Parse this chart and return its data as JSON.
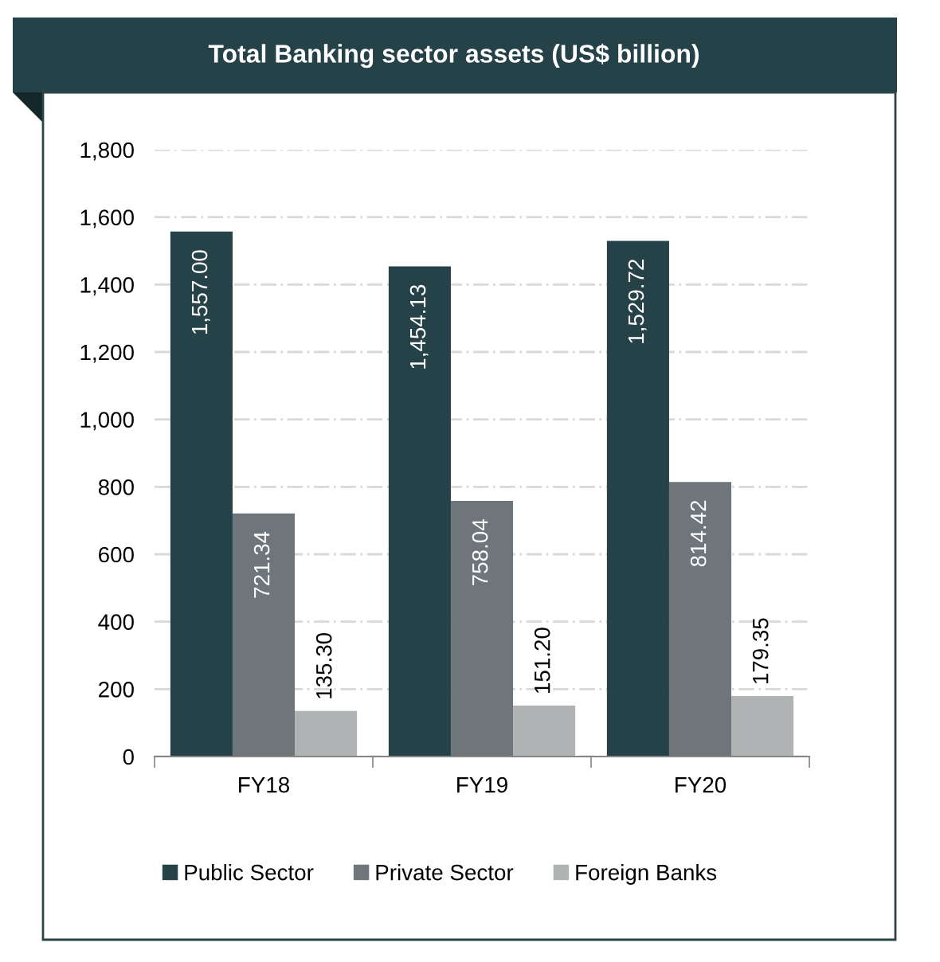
{
  "chart_data": {
    "type": "bar",
    "title": "Total Banking sector assets (US$ billion)",
    "categories": [
      "FY18",
      "FY19",
      "FY20"
    ],
    "series": [
      {
        "name": "Public Sector",
        "color": "#264249",
        "values": [
          1557.0,
          1454.13,
          1529.72
        ],
        "value_labels": [
          "1,557.00",
          "1,454.13",
          "1,529.72"
        ]
      },
      {
        "name": "Private Sector",
        "color": "#6e767b",
        "values": [
          721.34,
          758.04,
          814.42
        ],
        "value_labels": [
          "721.34",
          "758.04",
          "814.42"
        ]
      },
      {
        "name": "Foreign Banks",
        "color": "#b0b3b3",
        "values": [
          135.3,
          151.2,
          179.35
        ],
        "value_labels": [
          "135.30",
          "151.20",
          "179.35"
        ]
      }
    ],
    "ylim": [
      0,
      1800
    ],
    "yticks": [
      0,
      200,
      400,
      600,
      800,
      {
        "value": 1000,
        "label": "1,000"
      },
      {
        "value": 1200,
        "label": "1,200"
      },
      {
        "value": 1400,
        "label": "1,400"
      },
      {
        "value": 1600,
        "label": "1,600"
      },
      {
        "value": 1800,
        "label": "1,800"
      }
    ],
    "grid": "y",
    "legend": "bottom"
  }
}
